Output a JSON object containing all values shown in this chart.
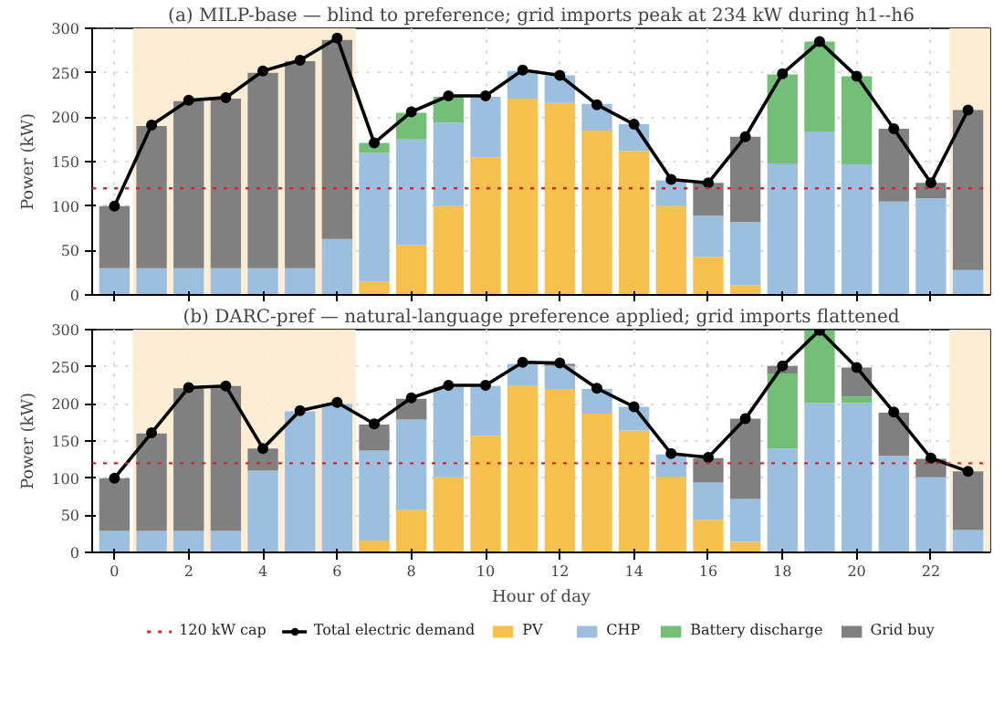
{
  "chart_data": [
    {
      "type": "bar",
      "title": "(a) MILP-base — blind to preference; grid imports peak at 234 kW during h1--h6",
      "ylabel": "Power (kW)",
      "stacked": true,
      "x": [
        0,
        1,
        2,
        3,
        4,
        5,
        6,
        7,
        8,
        9,
        10,
        11,
        12,
        13,
        14,
        15,
        16,
        17,
        18,
        19,
        20,
        21,
        22,
        23
      ],
      "xlim": [
        -0.6,
        23.6
      ],
      "ylim": [
        0,
        300
      ],
      "xticks": [
        0,
        2,
        4,
        6,
        8,
        10,
        12,
        14,
        16,
        18,
        20,
        22
      ],
      "yticks": [
        0,
        50,
        100,
        150,
        200,
        250,
        300
      ],
      "tick_labels": "y",
      "grid": true,
      "legend": false,
      "series": [
        {
          "color": "#f6c04f",
          "values": [
            0,
            0,
            0,
            0,
            0,
            0,
            0,
            15,
            56,
            100,
            155,
            221,
            216,
            185,
            162,
            100,
            43,
            11,
            0,
            0,
            0,
            0,
            0,
            0
          ]
        },
        {
          "color": "#9dbfdf",
          "values": [
            30,
            30,
            30,
            30,
            30,
            30,
            63,
            145,
            119,
            94,
            68,
            31,
            31,
            30,
            30,
            29,
            46,
            71,
            148,
            184,
            147,
            105,
            109,
            28
          ]
        },
        {
          "color": "#73bf78",
          "values": [
            0,
            0,
            0,
            0,
            0,
            0,
            0,
            11,
            30,
            29,
            0,
            0,
            0,
            0,
            0,
            0,
            0,
            0,
            100,
            101,
            99,
            0,
            0,
            0
          ]
        },
        {
          "color": "#808080",
          "values": [
            70,
            160,
            188,
            191,
            220,
            233,
            224,
            0,
            0,
            0,
            0,
            0,
            0,
            0,
            0,
            0,
            37,
            96,
            0,
            0,
            0,
            82,
            17,
            180
          ]
        },
        {
          "type": "line",
          "color": "#000000",
          "marker": "circle",
          "values": [
            100,
            191,
            219,
            222,
            252,
            264,
            289,
            171,
            206,
            224,
            224,
            253,
            247,
            214,
            192,
            130,
            126,
            178,
            249,
            285,
            246,
            187,
            126,
            208
          ]
        }
      ],
      "ref_lines": [
        {
          "axis": "y",
          "value": 120,
          "color": "#d62728",
          "line_style": "dotted"
        }
      ],
      "bands": [
        {
          "axis": "x",
          "from": 0.5,
          "to": 6.5,
          "color": "#fdebd0"
        },
        {
          "axis": "x",
          "from": 22.5,
          "to": 23.6,
          "color": "#fdebd0"
        }
      ]
    },
    {
      "type": "bar",
      "title": "(b) DARC-pref — natural-language preference applied; grid imports flattened",
      "xlabel": "Hour of day",
      "ylabel": "Power (kW)",
      "stacked": true,
      "x": [
        0,
        1,
        2,
        3,
        4,
        5,
        6,
        7,
        8,
        9,
        10,
        11,
        12,
        13,
        14,
        15,
        16,
        17,
        18,
        19,
        20,
        21,
        22,
        23
      ],
      "xlim": [
        -0.6,
        23.6
      ],
      "ylim": [
        0,
        300
      ],
      "xticks": [
        0,
        2,
        4,
        6,
        8,
        10,
        12,
        14,
        16,
        18,
        20,
        22
      ],
      "yticks": [
        0,
        50,
        100,
        150,
        200,
        250,
        300
      ],
      "grid": true,
      "legend": "bottom",
      "series": [
        {
          "name": "PV",
          "color": "#f6c04f",
          "values": [
            0,
            0,
            0,
            0,
            0,
            0,
            0,
            16,
            57,
            101,
            157,
            224,
            220,
            187,
            164,
            102,
            44,
            14,
            0,
            0,
            0,
            0,
            0,
            0
          ]
        },
        {
          "name": "CHP",
          "color": "#9dbfdf",
          "values": [
            29,
            29,
            29,
            29,
            110,
            190,
            200,
            121,
            122,
            122,
            67,
            30,
            31,
            33,
            32,
            30,
            50,
            58,
            140,
            201,
            201,
            130,
            101,
            30
          ]
        },
        {
          "name": "Battery discharge",
          "color": "#73bf78",
          "values": [
            0,
            0,
            0,
            0,
            0,
            0,
            0,
            0,
            0,
            0,
            0,
            0,
            0,
            0,
            0,
            0,
            0,
            0,
            101,
            98,
            9,
            0,
            0,
            0
          ]
        },
        {
          "name": "Grid buy",
          "color": "#808080",
          "values": [
            71,
            131,
            192,
            195,
            30,
            0,
            0,
            35,
            28,
            0,
            0,
            0,
            3,
            0,
            0,
            0,
            33,
            108,
            10,
            0,
            39,
            58,
            25,
            79
          ]
        },
        {
          "name": "Total electric demand",
          "type": "line",
          "color": "#000000",
          "marker": "circle",
          "values": [
            100,
            161,
            222,
            224,
            140,
            191,
            202,
            173,
            208,
            225,
            225,
            256,
            255,
            221,
            196,
            133,
            128,
            180,
            251,
            299,
            249,
            189,
            127,
            109
          ]
        }
      ],
      "ref_lines": [
        {
          "axis": "y",
          "value": 120,
          "label": "120 kW cap",
          "color": "#d62728",
          "line_style": "dotted"
        }
      ],
      "bands": [
        {
          "axis": "x",
          "from": 0.5,
          "to": 6.5,
          "color": "#fdebd0"
        },
        {
          "axis": "x",
          "from": 22.5,
          "to": 23.6,
          "color": "#fdebd0"
        }
      ]
    }
  ]
}
